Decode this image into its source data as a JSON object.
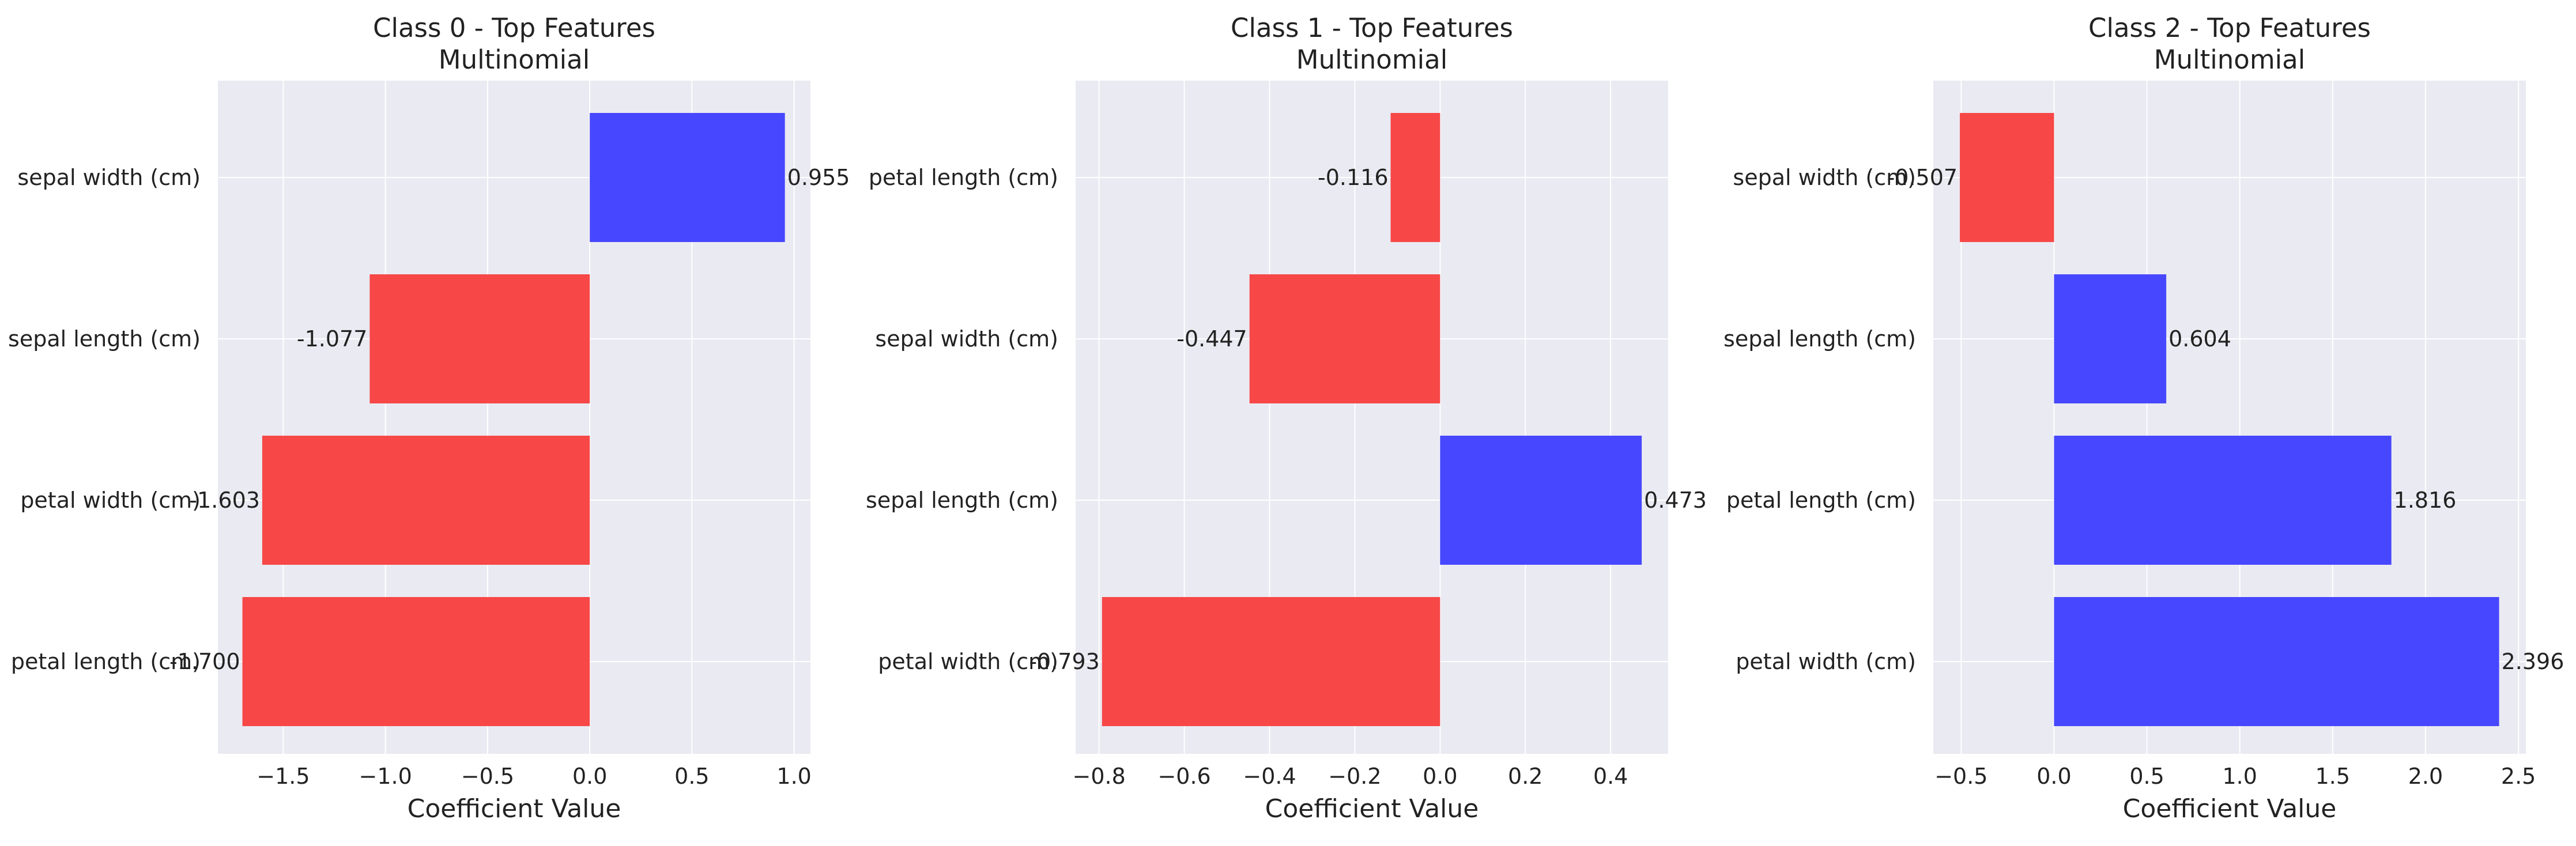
{
  "chart_data": [
    {
      "type": "bar",
      "orientation": "horizontal",
      "title": "Class 0 - Top Features",
      "subtitle": "Multinomial",
      "xlabel": "Coefficient Value",
      "ylabel": "",
      "categories": [
        "sepal width (cm)",
        "sepal length (cm)",
        "petal width (cm)",
        "petal length (cm)"
      ],
      "values": [
        0.955,
        -1.077,
        -1.603,
        -1.7
      ],
      "value_labels": [
        "0.955",
        "-1.077",
        "-1.603",
        "-1.700"
      ],
      "xlim": [
        -1.82,
        1.08
      ],
      "xticks": [
        -1.5,
        -1.0,
        -0.5,
        0.0,
        0.5,
        1.0
      ],
      "xtick_labels": [
        "−1.5",
        "−1.0",
        "−0.5",
        "0.0",
        "0.5",
        "1.0"
      ],
      "grid": true,
      "colors": {
        "positive": "#4747ff",
        "negative": "#f74747",
        "background": "#eaeaf2"
      }
    },
    {
      "type": "bar",
      "orientation": "horizontal",
      "title": "Class 1 - Top Features",
      "subtitle": "Multinomial",
      "xlabel": "Coefficient Value",
      "ylabel": "",
      "categories": [
        "petal length (cm)",
        "sepal width (cm)",
        "sepal length (cm)",
        "petal width (cm)"
      ],
      "values": [
        -0.116,
        -0.447,
        0.473,
        -0.793
      ],
      "value_labels": [
        "-0.116",
        "-0.447",
        "0.473",
        "-0.793"
      ],
      "xlim": [
        -0.855,
        0.535
      ],
      "xticks": [
        -0.8,
        -0.6,
        -0.4,
        -0.2,
        0.0,
        0.2,
        0.4
      ],
      "xtick_labels": [
        "−0.8",
        "−0.6",
        "−0.4",
        "−0.2",
        "0.0",
        "0.2",
        "0.4"
      ],
      "grid": true,
      "colors": {
        "positive": "#4747ff",
        "negative": "#f74747",
        "background": "#eaeaf2"
      }
    },
    {
      "type": "bar",
      "orientation": "horizontal",
      "title": "Class 2 - Top Features",
      "subtitle": "Multinomial",
      "xlabel": "Coefficient Value",
      "ylabel": "",
      "categories": [
        "sepal width (cm)",
        "sepal length (cm)",
        "petal length (cm)",
        "petal width (cm)"
      ],
      "values": [
        -0.507,
        0.604,
        1.816,
        2.396
      ],
      "value_labels": [
        "-0.507",
        "0.604",
        "1.816",
        "2.396"
      ],
      "xlim": [
        -0.65,
        2.54
      ],
      "xticks": [
        -0.5,
        0.0,
        0.5,
        1.0,
        1.5,
        2.0,
        2.5
      ],
      "xtick_labels": [
        "−0.5",
        "0.0",
        "0.5",
        "1.0",
        "1.5",
        "2.0",
        "2.5"
      ],
      "grid": true,
      "colors": {
        "positive": "#4747ff",
        "negative": "#f74747",
        "background": "#eaeaf2"
      }
    }
  ]
}
